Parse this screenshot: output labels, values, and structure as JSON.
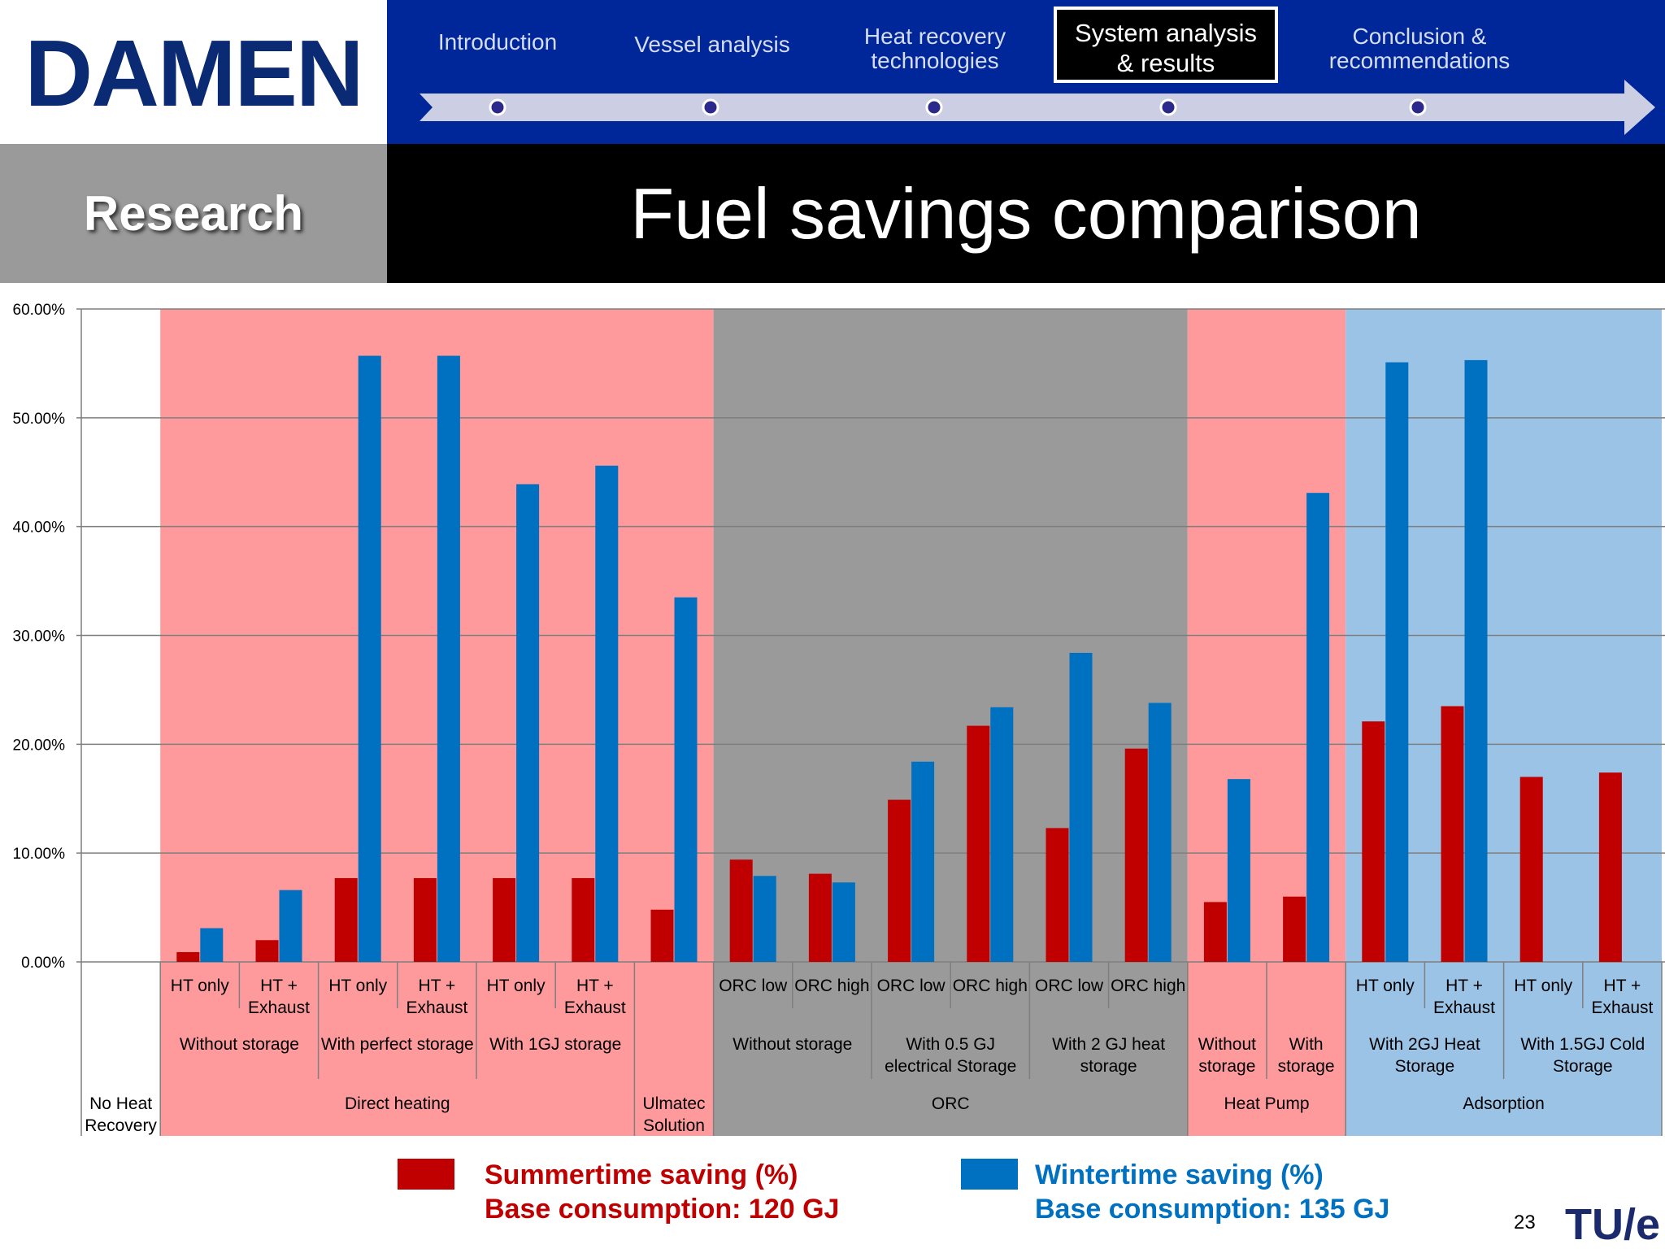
{
  "logo": {
    "text": "DAMEN",
    "color": "#0a2a73"
  },
  "nav": {
    "items": [
      {
        "label": "Introduction",
        "active": false
      },
      {
        "label": "Vessel analysis",
        "active": false
      },
      {
        "label": "Heat recovery\ntechnologies",
        "active": false
      },
      {
        "label": "System analysis\n& results",
        "active": true
      },
      {
        "label": "Conclusion &\nrecommendations",
        "active": false
      }
    ]
  },
  "section_label": "Research",
  "page_title": "Fuel savings comparison",
  "chart_data": {
    "type": "bar",
    "title": "",
    "xlabel": "",
    "ylabel": "",
    "ylim": [
      0,
      60
    ],
    "ytick_labels": [
      "0.00%",
      "10.00%",
      "20.00%",
      "30.00%",
      "40.00%",
      "50.00%",
      "60.00%"
    ],
    "categories": [
      "",
      "HT only",
      "HT +\nExhaust",
      "HT only",
      "HT +\nExhaust",
      "HT only",
      "HT +\nExhaust",
      "",
      "ORC low",
      "ORC high",
      "ORC low",
      "ORC high",
      "ORC low",
      "ORC high",
      "",
      "",
      "HT only",
      "HT +\nExhaust",
      "HT only",
      "HT +\nExhaust"
    ],
    "series": [
      {
        "name": "Summertime saving (%)",
        "color": "#c00000",
        "values": [
          null,
          0.9,
          2.0,
          7.7,
          7.7,
          7.7,
          7.7,
          4.8,
          9.4,
          8.1,
          14.9,
          21.7,
          12.3,
          19.6,
          5.5,
          6.0,
          22.1,
          23.5,
          17.0,
          17.4
        ]
      },
      {
        "name": "Wintertime saving (%)",
        "color": "#0070c0",
        "values": [
          null,
          3.1,
          6.6,
          55.7,
          55.7,
          43.9,
          45.6,
          33.5,
          7.9,
          7.3,
          18.4,
          23.4,
          28.4,
          23.8,
          16.8,
          43.1,
          55.1,
          55.3,
          null,
          null
        ]
      }
    ],
    "subgroups": [
      "Without storage",
      "With perfect storage",
      "With 1GJ storage",
      "Without storage",
      "With 0.5 GJ\nelectrical Storage",
      "With 2 GJ heat\nstorage",
      "Without\nstorage",
      "With\nstorage",
      "With 2GJ Heat\nStorage",
      "With 1.5GJ Cold\nStorage"
    ],
    "groups": [
      "No Heat\nRecovery",
      "Direct heating",
      "Ulmatec\nSolution",
      "ORC",
      "Heat Pump",
      "Adsorption"
    ],
    "background_colors": {
      "pink": "#fe9a9c",
      "grey": "#9a9a9a",
      "blue": "#9bc3e6"
    },
    "grid": true,
    "legend_position": "bottom"
  },
  "legend": {
    "summer": {
      "line1": "Summertime saving (%)",
      "line2": "Base consumption: 120 GJ",
      "color": "#c00000"
    },
    "winter": {
      "line1": "Wintertime saving (%)",
      "line2": "Base consumption: 135 GJ",
      "color": "#0070c0"
    }
  },
  "page_number": "23",
  "footer_logo": {
    "text": "TU/e",
    "color": "#c40d1e"
  }
}
